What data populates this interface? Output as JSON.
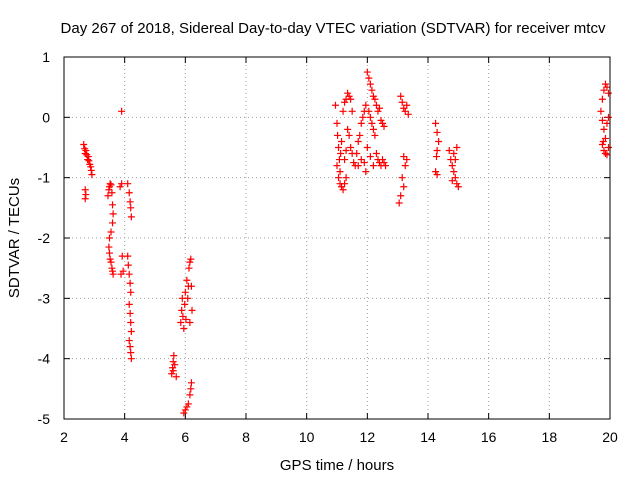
{
  "chart_data": {
    "type": "scatter",
    "title": "Day 267 of 2018, Sidereal Day-to-day VTEC variation (SDTVAR) for receiver mtcv",
    "xlabel": "GPS time / hours",
    "ylabel": "SDTVAR / TECUs",
    "xlim": [
      2,
      20
    ],
    "ylim": [
      -5,
      1
    ],
    "xticks": [
      2,
      4,
      6,
      8,
      10,
      12,
      14,
      16,
      18,
      20
    ],
    "yticks": [
      -5,
      -4,
      -3,
      -2,
      -1,
      0,
      1
    ],
    "grid": true,
    "marker": "plus",
    "color": "#ff0000",
    "series": [
      {
        "name": "SDTVAR",
        "points": [
          [
            2.65,
            -0.45
          ],
          [
            2.68,
            -0.52
          ],
          [
            2.7,
            -0.6
          ],
          [
            2.72,
            -0.55
          ],
          [
            2.75,
            -0.62
          ],
          [
            2.78,
            -0.7
          ],
          [
            2.8,
            -0.65
          ],
          [
            2.82,
            -0.72
          ],
          [
            2.85,
            -0.78
          ],
          [
            2.88,
            -0.82
          ],
          [
            2.9,
            -0.88
          ],
          [
            2.92,
            -0.95
          ],
          [
            2.7,
            -1.2
          ],
          [
            2.72,
            -1.28
          ],
          [
            2.7,
            -1.35
          ],
          [
            3.45,
            -1.3
          ],
          [
            3.48,
            -1.2
          ],
          [
            3.5,
            -1.15
          ],
          [
            3.52,
            -1.1
          ],
          [
            3.55,
            -1.12
          ],
          [
            3.58,
            -1.25
          ],
          [
            3.6,
            -1.45
          ],
          [
            3.62,
            -1.6
          ],
          [
            3.6,
            -1.75
          ],
          [
            3.55,
            -1.9
          ],
          [
            3.5,
            -2.0
          ],
          [
            3.48,
            -2.15
          ],
          [
            3.5,
            -2.25
          ],
          [
            3.52,
            -2.35
          ],
          [
            3.55,
            -2.4
          ],
          [
            3.58,
            -2.5
          ],
          [
            3.6,
            -2.55
          ],
          [
            3.62,
            -2.6
          ],
          [
            3.85,
            -1.15
          ],
          [
            3.9,
            -1.1
          ],
          [
            3.92,
            -2.3
          ],
          [
            3.95,
            -2.55
          ],
          [
            3.88,
            -2.6
          ],
          [
            3.9,
            0.1
          ],
          [
            4.1,
            -1.1
          ],
          [
            4.15,
            -1.25
          ],
          [
            4.18,
            -1.4
          ],
          [
            4.2,
            -1.5
          ],
          [
            4.22,
            -1.65
          ],
          [
            4.1,
            -2.3
          ],
          [
            4.12,
            -2.45
          ],
          [
            4.15,
            -2.6
          ],
          [
            4.18,
            -2.75
          ],
          [
            4.2,
            -2.9
          ],
          [
            4.15,
            -3.1
          ],
          [
            4.18,
            -3.25
          ],
          [
            4.2,
            -3.4
          ],
          [
            4.22,
            -3.55
          ],
          [
            4.15,
            -3.7
          ],
          [
            4.18,
            -3.8
          ],
          [
            4.2,
            -3.9
          ],
          [
            4.22,
            -4.0
          ],
          [
            5.55,
            -4.25
          ],
          [
            5.58,
            -4.15
          ],
          [
            5.6,
            -4.05
          ],
          [
            5.62,
            -3.95
          ],
          [
            5.6,
            -4.2
          ],
          [
            5.65,
            -4.1
          ],
          [
            5.7,
            -4.3
          ],
          [
            5.85,
            -3.4
          ],
          [
            5.88,
            -3.2
          ],
          [
            5.9,
            -3.0
          ],
          [
            5.92,
            -3.3
          ],
          [
            5.95,
            -3.5
          ],
          [
            5.98,
            -3.1
          ],
          [
            6.0,
            -2.9
          ],
          [
            6.02,
            -3.35
          ],
          [
            6.05,
            -2.7
          ],
          [
            6.08,
            -3.0
          ],
          [
            6.1,
            -2.8
          ],
          [
            6.12,
            -2.5
          ],
          [
            6.15,
            -2.4
          ],
          [
            6.18,
            -2.35
          ],
          [
            6.2,
            -2.8
          ],
          [
            6.22,
            -3.2
          ],
          [
            6.15,
            -3.4
          ],
          [
            5.95,
            -4.9
          ],
          [
            6.0,
            -4.85
          ],
          [
            6.05,
            -4.8
          ],
          [
            6.1,
            -4.75
          ],
          [
            6.15,
            -4.6
          ],
          [
            6.18,
            -4.5
          ],
          [
            6.2,
            -4.4
          ],
          [
            10.95,
            0.2
          ],
          [
            11.0,
            -0.1
          ],
          [
            11.02,
            -0.3
          ],
          [
            11.05,
            -0.5
          ],
          [
            11.08,
            -0.7
          ],
          [
            11.1,
            -0.9
          ],
          [
            11.12,
            -0.6
          ],
          [
            11.15,
            -0.4
          ],
          [
            11.0,
            -0.8
          ],
          [
            11.05,
            -1.0
          ],
          [
            11.1,
            -1.1
          ],
          [
            11.15,
            -1.15
          ],
          [
            11.2,
            -1.2
          ],
          [
            11.25,
            -1.1
          ],
          [
            11.3,
            -1.0
          ],
          [
            11.2,
            0.1
          ],
          [
            11.25,
            0.25
          ],
          [
            11.3,
            0.3
          ],
          [
            11.35,
            0.4
          ],
          [
            11.4,
            0.35
          ],
          [
            11.45,
            0.3
          ],
          [
            11.5,
            0.1
          ],
          [
            11.35,
            -0.2
          ],
          [
            11.4,
            -0.3
          ],
          [
            11.45,
            -0.5
          ],
          [
            11.5,
            -0.6
          ],
          [
            11.55,
            -0.75
          ],
          [
            11.6,
            -0.8
          ],
          [
            11.3,
            -0.55
          ],
          [
            11.25,
            -0.7
          ],
          [
            11.65,
            -0.6
          ],
          [
            11.7,
            -0.4
          ],
          [
            11.75,
            -0.3
          ],
          [
            11.8,
            -0.1
          ],
          [
            11.85,
            0.0
          ],
          [
            11.9,
            0.1
          ],
          [
            11.95,
            0.2
          ],
          [
            11.7,
            -0.8
          ],
          [
            11.8,
            -0.7
          ],
          [
            11.9,
            -0.75
          ],
          [
            11.95,
            -0.9
          ],
          [
            12.0,
            0.75
          ],
          [
            12.05,
            0.65
          ],
          [
            12.1,
            0.55
          ],
          [
            12.15,
            0.45
          ],
          [
            12.2,
            0.35
          ],
          [
            12.25,
            0.3
          ],
          [
            12.3,
            0.2
          ],
          [
            12.05,
            0.1
          ],
          [
            12.1,
            0.0
          ],
          [
            12.15,
            -0.1
          ],
          [
            12.2,
            -0.2
          ],
          [
            12.25,
            -0.3
          ],
          [
            12.3,
            -0.6
          ],
          [
            12.35,
            -0.7
          ],
          [
            12.4,
            -0.75
          ],
          [
            12.45,
            -0.8
          ],
          [
            12.5,
            -0.7
          ],
          [
            12.55,
            -0.75
          ],
          [
            12.6,
            -0.8
          ],
          [
            12.35,
            0.1
          ],
          [
            12.4,
            0.15
          ],
          [
            12.45,
            -0.05
          ],
          [
            12.5,
            -0.1
          ],
          [
            12.55,
            -0.15
          ],
          [
            12.0,
            -0.5
          ],
          [
            12.1,
            -0.65
          ],
          [
            12.2,
            -0.8
          ],
          [
            13.1,
            0.35
          ],
          [
            13.15,
            0.25
          ],
          [
            13.2,
            0.15
          ],
          [
            13.25,
            0.1
          ],
          [
            13.3,
            0.2
          ],
          [
            13.35,
            0.05
          ],
          [
            13.2,
            -0.65
          ],
          [
            13.25,
            -0.8
          ],
          [
            13.3,
            -0.7
          ],
          [
            13.15,
            -1.0
          ],
          [
            13.2,
            -1.15
          ],
          [
            13.1,
            -1.3
          ],
          [
            13.05,
            -1.42
          ],
          [
            14.25,
            -0.1
          ],
          [
            14.3,
            -0.25
          ],
          [
            14.35,
            -0.4
          ],
          [
            14.3,
            -0.55
          ],
          [
            14.28,
            -0.65
          ],
          [
            14.25,
            -0.9
          ],
          [
            14.3,
            -0.95
          ],
          [
            14.7,
            -0.55
          ],
          [
            14.75,
            -0.7
          ],
          [
            14.8,
            -0.8
          ],
          [
            14.85,
            -0.9
          ],
          [
            14.9,
            -1.0
          ],
          [
            14.95,
            -1.1
          ],
          [
            15.0,
            -1.15
          ],
          [
            14.85,
            -0.6
          ],
          [
            14.9,
            -0.7
          ],
          [
            14.95,
            -0.5
          ],
          [
            14.8,
            -1.05
          ],
          [
            19.7,
            0.1
          ],
          [
            19.75,
            0.3
          ],
          [
            19.8,
            0.45
          ],
          [
            19.85,
            0.55
          ],
          [
            19.9,
            0.5
          ],
          [
            19.95,
            0.4
          ],
          [
            19.75,
            -0.05
          ],
          [
            19.8,
            -0.2
          ],
          [
            19.85,
            -0.35
          ],
          [
            19.75,
            -0.45
          ],
          [
            19.8,
            -0.55
          ],
          [
            19.85,
            -0.6
          ],
          [
            19.9,
            -0.62
          ],
          [
            19.95,
            -0.5
          ],
          [
            19.78,
            -0.4
          ],
          [
            19.9,
            -0.1
          ],
          [
            19.95,
            0.0
          ]
        ]
      }
    ]
  }
}
